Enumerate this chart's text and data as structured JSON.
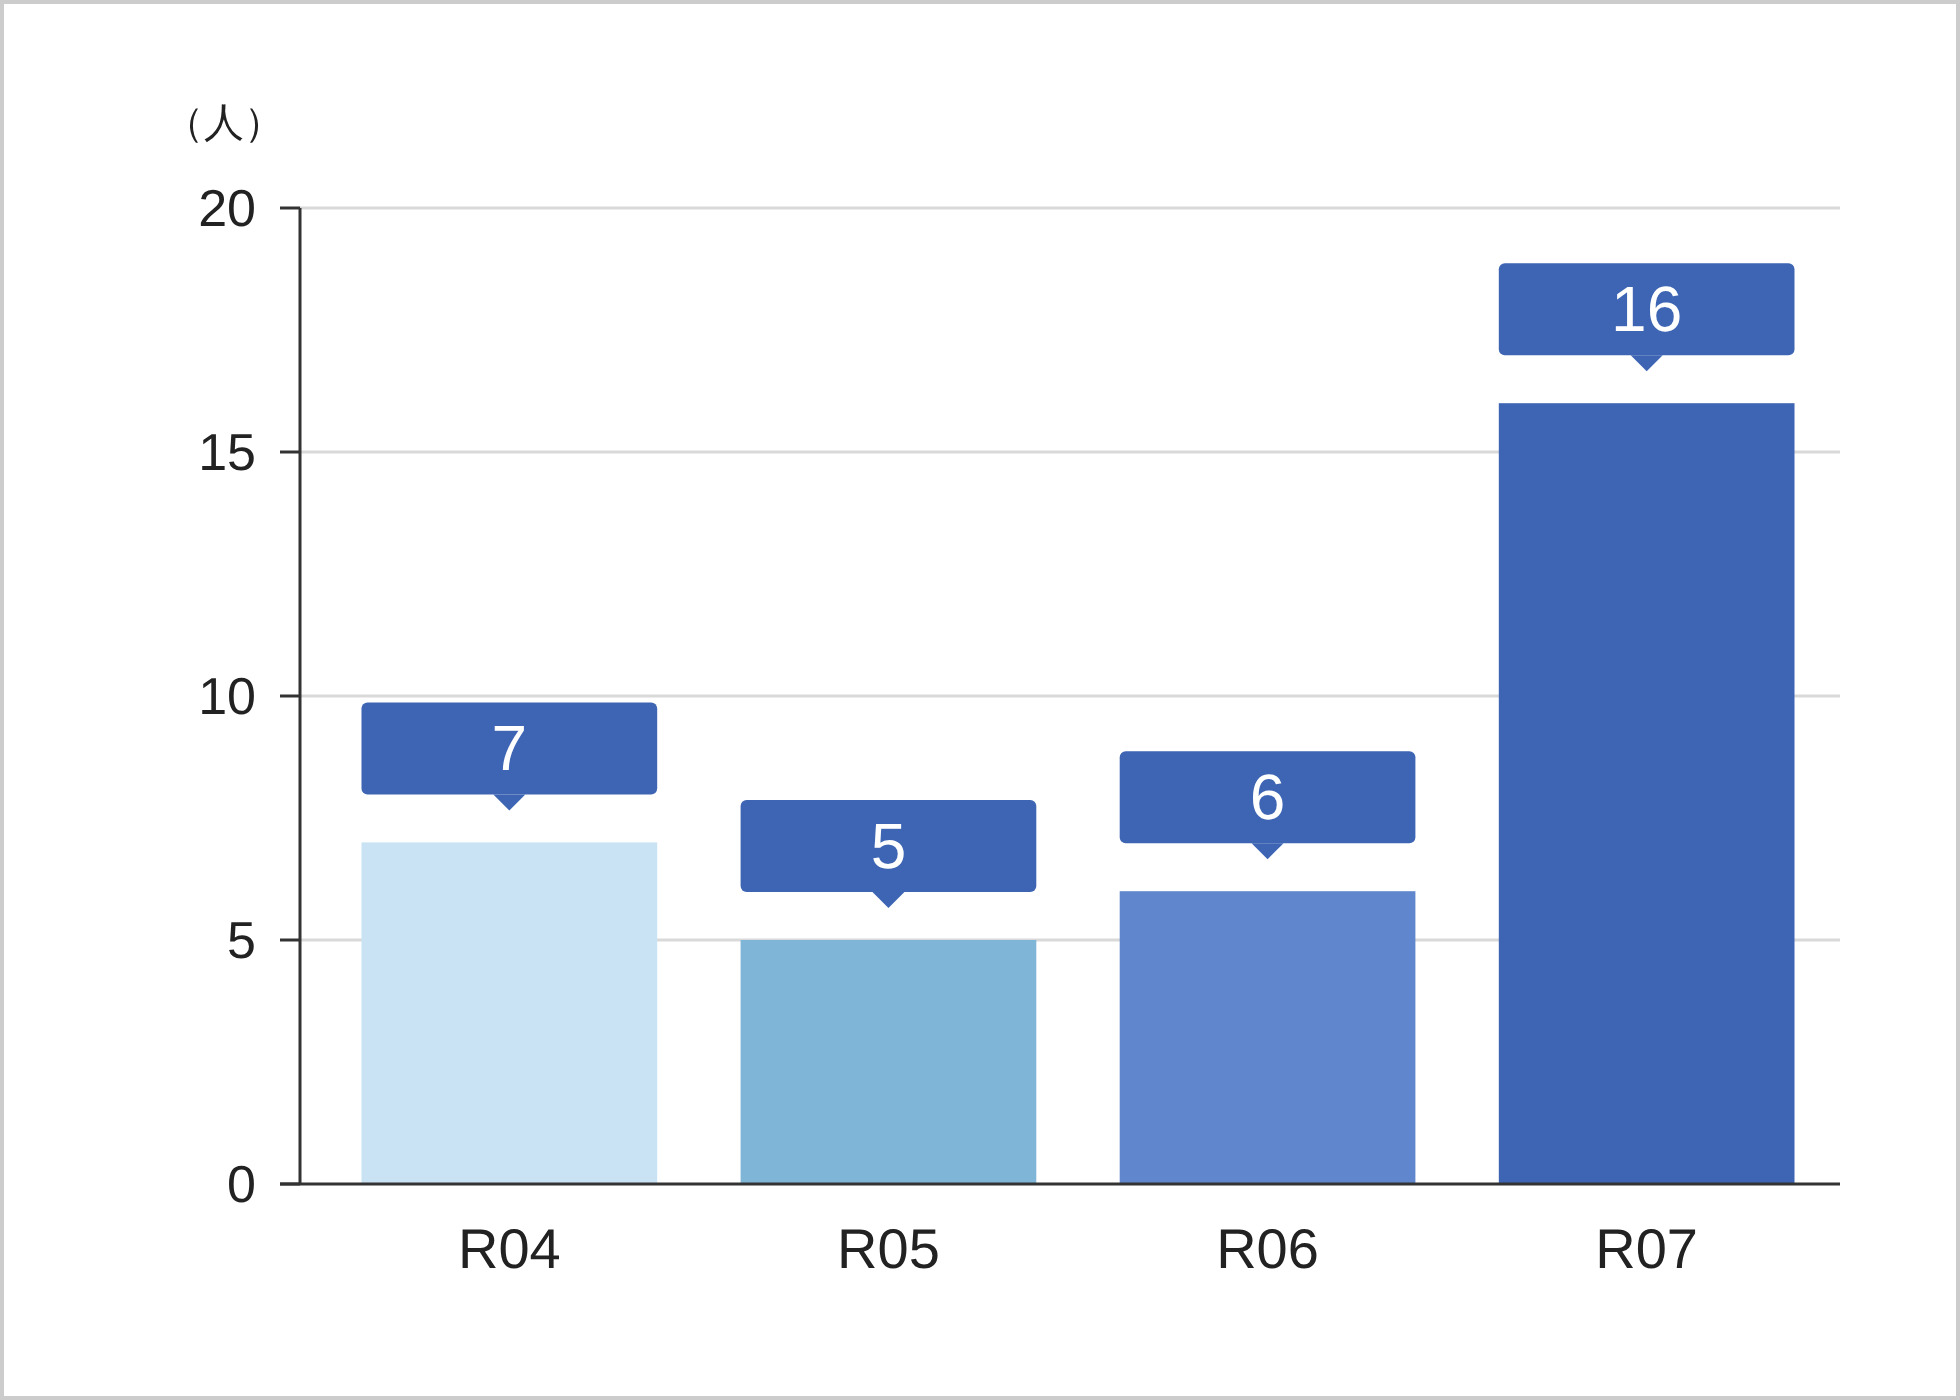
{
  "chart_data": {
    "type": "bar",
    "ylabel": "（人）",
    "categories": [
      "R04",
      "R05",
      "R06",
      "R07"
    ],
    "values": [
      7,
      5,
      6,
      16
    ],
    "colors": [
      "#c9e3f4",
      "#7fb6d8",
      "#6087cd",
      "#3d65b4"
    ],
    "ylim": [
      0,
      20
    ],
    "yticks": [
      0,
      5,
      10,
      15,
      20
    ],
    "grid": "y",
    "data_labels": true
  }
}
